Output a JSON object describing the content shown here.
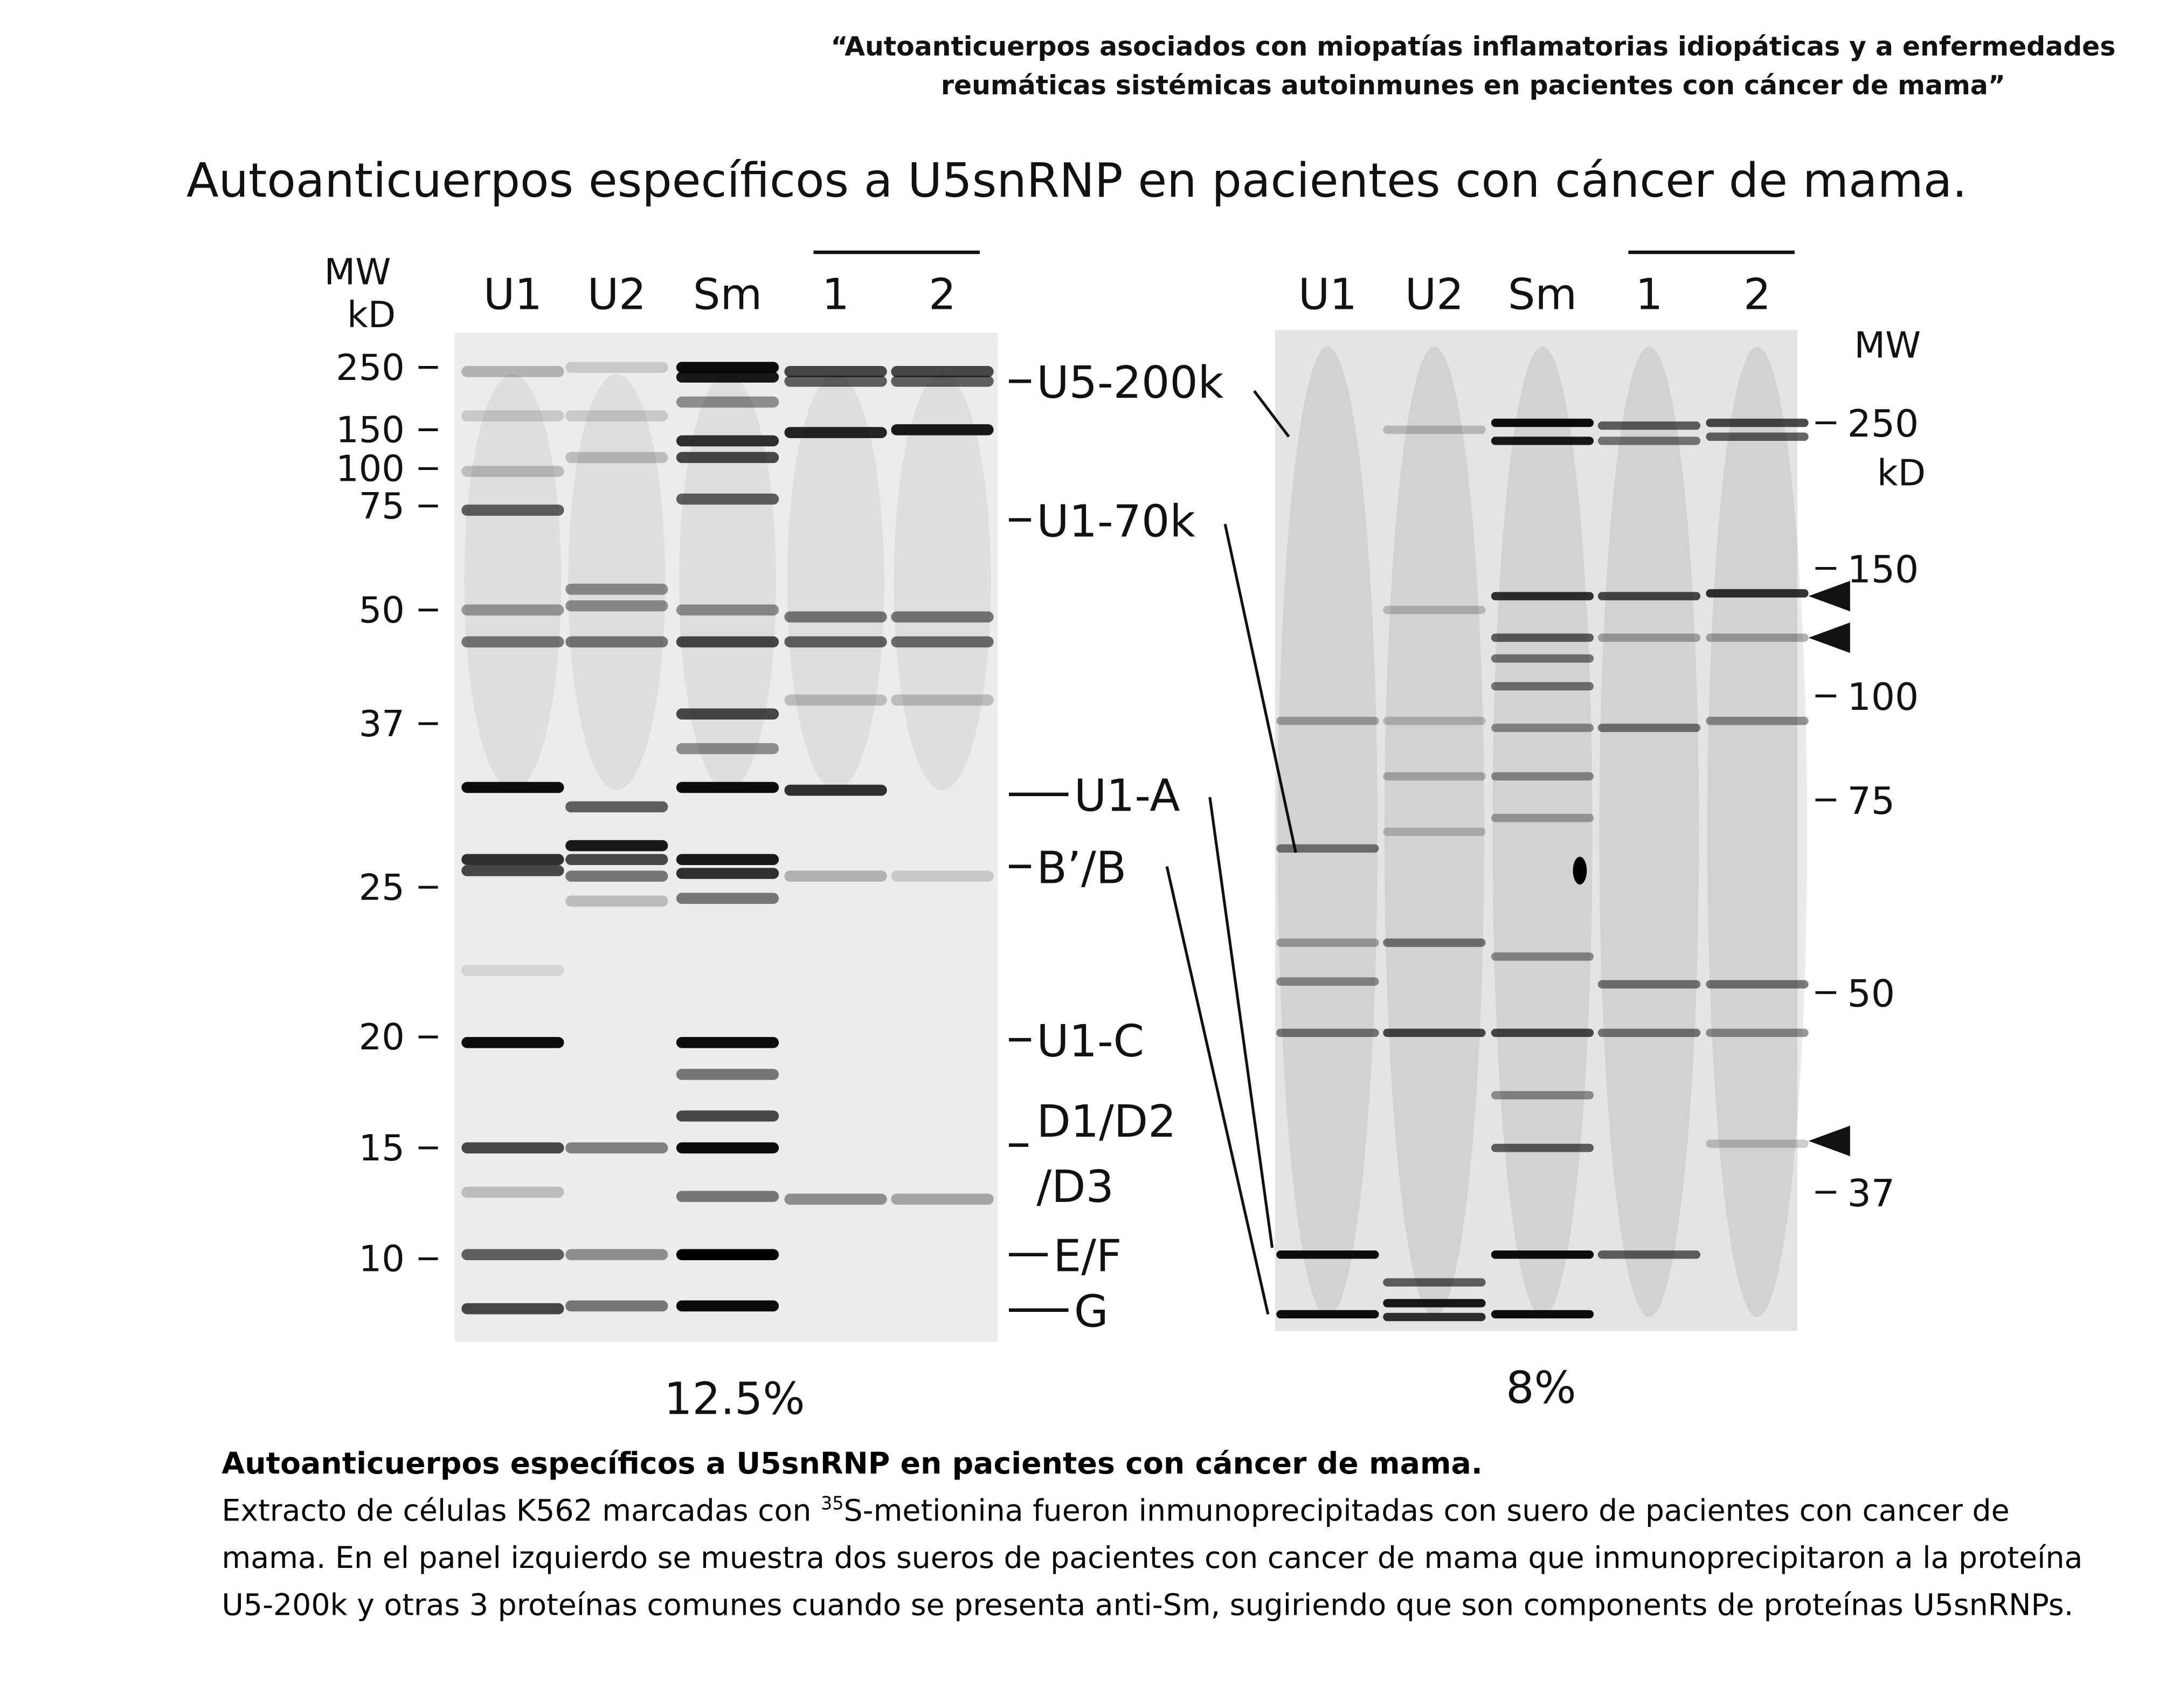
{
  "header": {
    "quote_line1": "“Autoanticuerpos asociados con miopatías inflamatorias idiopáticas y a enfermedades",
    "quote_line2": "reumáticas sistémicas autoinmunes en pacientes con cáncer de mama”",
    "title": "Autoanticuerpos específicos a U5snRNP en pacientes con cáncer de mama."
  },
  "figure": {
    "left_panel": {
      "mw_label": "MW",
      "unit_label": "kD",
      "lanes": [
        "U1",
        "U2",
        "Sm",
        "1",
        "2"
      ],
      "markers": [
        "250",
        "150",
        "100",
        "75",
        "50",
        "37",
        "25",
        "20",
        "15",
        "10"
      ],
      "proteins": [
        "U5-200k",
        "U1-70k",
        "U1-A",
        "B’/B",
        "U1-C",
        "D1/D2",
        "/D3",
        "E/F",
        "G"
      ],
      "gel_percent": "12.5%"
    },
    "right_panel": {
      "lanes": [
        "U1",
        "U2",
        "Sm",
        "1",
        "2"
      ],
      "mw_label": "MW",
      "unit_label": "kD",
      "markers": [
        "250",
        "150",
        "100",
        "75",
        "50",
        "37"
      ],
      "gel_percent": "8%"
    }
  },
  "caption": {
    "title": "Autoanticuerpos específicos a U5snRNP en pacientes con cáncer de mama.",
    "text_before": "Extracto de células K562 marcadas con ",
    "superscript": "35",
    "text_after": "S-metionina fueron inmunoprecipitadas con suero de pacientes con cancer de mama. En el panel izquierdo se muestra dos sueros de pacientes con cancer de mama que inmunoprecipitaron a la proteína U5-200k y otras 3 proteínas comunes cuando se presenta anti-Sm, sugiriendo que son components de proteínas U5snRNPs."
  }
}
